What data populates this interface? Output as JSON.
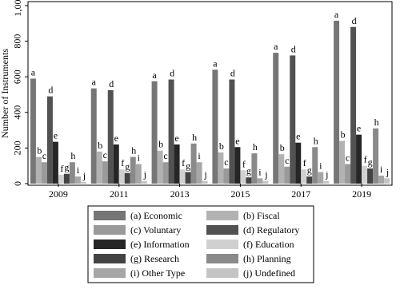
{
  "chart_data": {
    "type": "bar",
    "y_label": "Number of Instruments",
    "categories": [
      "2009",
      "2011",
      "2013",
      "2015",
      "2017",
      "2019"
    ],
    "series": [
      {
        "name": "(a) Economic",
        "label": "a",
        "color": "#767676",
        "values": [
          590,
          535,
          575,
          640,
          735,
          915
        ]
      },
      {
        "name": "(b) Fiscal",
        "label": "b",
        "color": "#b2b2b2",
        "values": [
          150,
          180,
          185,
          175,
          165,
          240
        ]
      },
      {
        "name": "(c) Voluntary",
        "label": "c",
        "color": "#9a9a9a",
        "values": [
          120,
          125,
          120,
          85,
          95,
          110
        ]
      },
      {
        "name": "(d) Regulatory",
        "label": "d",
        "color": "#525252",
        "values": [
          490,
          525,
          585,
          585,
          720,
          880
        ]
      },
      {
        "name": "(e) Information",
        "label": "e",
        "color": "#262626",
        "values": [
          235,
          220,
          220,
          205,
          230,
          275
        ]
      },
      {
        "name": "(f) Education",
        "label": "f",
        "color": "#d0d0d0",
        "values": [
          50,
          80,
          80,
          75,
          80,
          100
        ]
      },
      {
        "name": "(g) Research",
        "label": "g",
        "color": "#434343",
        "values": [
          55,
          60,
          65,
          35,
          40,
          85
        ]
      },
      {
        "name": "(h) Planning",
        "label": "h",
        "color": "#8a8a8a",
        "values": [
          120,
          150,
          225,
          170,
          205,
          310
        ]
      },
      {
        "name": "(i) Other Type",
        "label": "i",
        "color": "#a6a6a6",
        "values": [
          40,
          110,
          120,
          30,
          65,
          45
        ]
      },
      {
        "name": "(j) Undefined",
        "label": "j",
        "color": "#c4c4c4",
        "values": [
          10,
          15,
          15,
          15,
          15,
          30
        ]
      }
    ],
    "ylim": [
      0,
      1000
    ],
    "yticks": [
      0,
      200,
      400,
      600,
      800,
      {
        "value": 1000,
        "label": "1,000"
      }
    ]
  }
}
